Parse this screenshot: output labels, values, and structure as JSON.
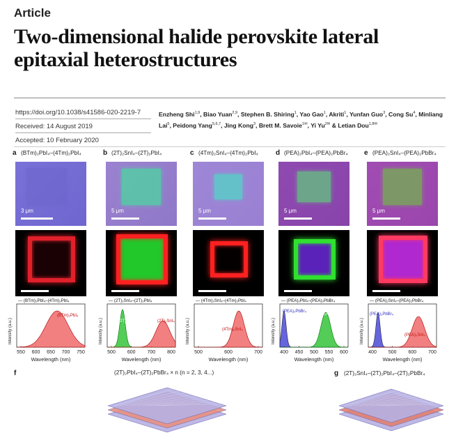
{
  "header": {
    "kicker": "Article",
    "title": "Two-dimensional halide perovskite lateral epitaxial heterostructures"
  },
  "meta": {
    "doi": "https://doi.org/10.1038/s41586-020-2219-7",
    "received": "Received: 14 August 2019",
    "accepted": "Accepted: 10 February 2020"
  },
  "authors": [
    {
      "name": "Enzheng Shi",
      "sup": "1,9"
    },
    {
      "name": "Biao Yuan",
      "sup": "2,9"
    },
    {
      "name": "Stephen B. Shiring",
      "sup": "1"
    },
    {
      "name": "Yao Gao",
      "sup": "1"
    },
    {
      "name": "Akriti",
      "sup": "1"
    },
    {
      "name": "Yunfan Guo",
      "sup": "3"
    },
    {
      "name": "Cong Su",
      "sup": "4"
    },
    {
      "name": "Minliang Lai",
      "sup": "5"
    },
    {
      "name": "Peidong Yang",
      "sup": "5,6,7"
    },
    {
      "name": "Jing Kong",
      "sup": "3"
    },
    {
      "name": "Brett M. Savoie",
      "sup": "1✉"
    },
    {
      "name": "Yi Yu",
      "sup": "2✉"
    },
    {
      "name": "Letian Dou",
      "sup": "1,8✉"
    }
  ],
  "panels": [
    {
      "letter": "a",
      "title": "(BTm)₂PbI₄–(4Tm)₂PbI₄",
      "scale": "3 μm",
      "optical_colors": [
        "#7a72d8",
        "#6f66cf"
      ],
      "inner_color": "#6e64cc",
      "pl_ring": "#e0202a",
      "pl_center": "#1a0204",
      "legend": "(BTm)₂PbI₄–(4Tm)₂PbI₄",
      "peak_labels": [
        "(BTm)₂PbI₄"
      ],
      "xticks": [
        "550",
        "600",
        "650",
        "700",
        "750"
      ]
    },
    {
      "letter": "b",
      "title": "(2T)₂SnI₄–(2T)₂PbI₄",
      "scale": "5 μm",
      "optical_colors": [
        "#9b82d0",
        "#8f78c8"
      ],
      "inner_color": "#59c8a8",
      "pl_ring": "#ff2020",
      "pl_center": "#22c82a",
      "legend": "(2T)₂SnI₄–(2T)₂PbI₄",
      "peak_labels": [
        "(2T)₂PbI₄",
        "(2T)₂SnI₄"
      ],
      "xticks": [
        "500",
        "600",
        "700",
        "800"
      ]
    },
    {
      "letter": "c",
      "title": "(4Tm)₂SnI₄–(4Tm)₂PbI₄",
      "scale": "5 μm",
      "optical_colors": [
        "#9e86d6",
        "#9a80d2"
      ],
      "inner_color": "#5ec8c8",
      "pl_ring": "#ff2020",
      "pl_center": "#050000",
      "legend": "(4Tm)₂SnI₄–(4Tm)₂PbI₄",
      "peak_labels": [
        "(4Tm)₂SnI₄"
      ],
      "xticks": [
        "500",
        "600",
        "700"
      ]
    },
    {
      "letter": "d",
      "title": "(PEA)₂PbI₄–(PEA)₂PbBr₄",
      "scale": "5 μm",
      "optical_colors": [
        "#8e4ab0",
        "#8844aa"
      ],
      "inner_color": "#6ab088",
      "pl_ring": "#30e030",
      "pl_center": "#5a22b8",
      "legend": "(PEA)₂PbI₄–(PEA)₂PbBr₄",
      "peak_labels": [
        "(PEA)₂PbBr₄",
        "(PEA)₂PbI₄"
      ],
      "xticks": [
        "400",
        "450",
        "500",
        "550",
        "600"
      ]
    },
    {
      "letter": "e",
      "title": "(PEA)₂SnI₄–(PEA)₂PbBr₄",
      "scale": "5 μm",
      "optical_colors": [
        "#a04cb2",
        "#9a46ac"
      ],
      "inner_color": "#7aa060",
      "pl_ring": "#ff3a60",
      "pl_center": "#b028d0",
      "legend": "(PEA)₂SnI₄–(PEA)₂PbBr₄",
      "peak_labels": [
        "(PEA)₂PbBr₄",
        "(PEA)₂SnI₄"
      ],
      "xticks": [
        "400",
        "500",
        "600",
        "700"
      ]
    }
  ],
  "spectra": {
    "ylabel": "Intensity (a.u.)",
    "xlabel": "Wavelength (nm)"
  },
  "schematics": [
    {
      "letter": "f",
      "title": "(2T)₂PbI₄–(2T)₂PbBr₄ × n (n = 2, 3, 4...)"
    },
    {
      "letter": "g",
      "title": "(2T)₂SnI₄–(2T)₂PbI₄–(2T)₂PbBr₄"
    }
  ]
}
